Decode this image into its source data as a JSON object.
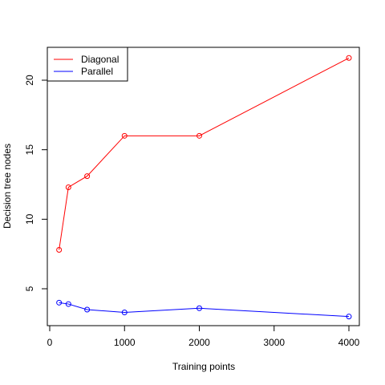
{
  "chart_data": {
    "type": "line",
    "title": "",
    "xlabel": "Training points",
    "ylabel": "Decision tree nodes",
    "xlim": [
      0,
      4000
    ],
    "ylim": [
      3,
      22
    ],
    "xticks": [
      0,
      1000,
      2000,
      3000,
      4000
    ],
    "yticks": [
      5,
      10,
      15,
      20
    ],
    "x": [
      125,
      250,
      500,
      1000,
      2000,
      4000
    ],
    "series": [
      {
        "name": "Diagonal",
        "color": "#ff0000",
        "values": [
          7.8,
          12.3,
          13.1,
          16.0,
          16.0,
          21.6
        ]
      },
      {
        "name": "Parallel",
        "color": "#0000ff",
        "values": [
          4.0,
          3.9,
          3.5,
          3.3,
          3.6,
          3.0
        ]
      }
    ],
    "grid": false,
    "legend_position": "top-left",
    "marker": "open-circle"
  }
}
